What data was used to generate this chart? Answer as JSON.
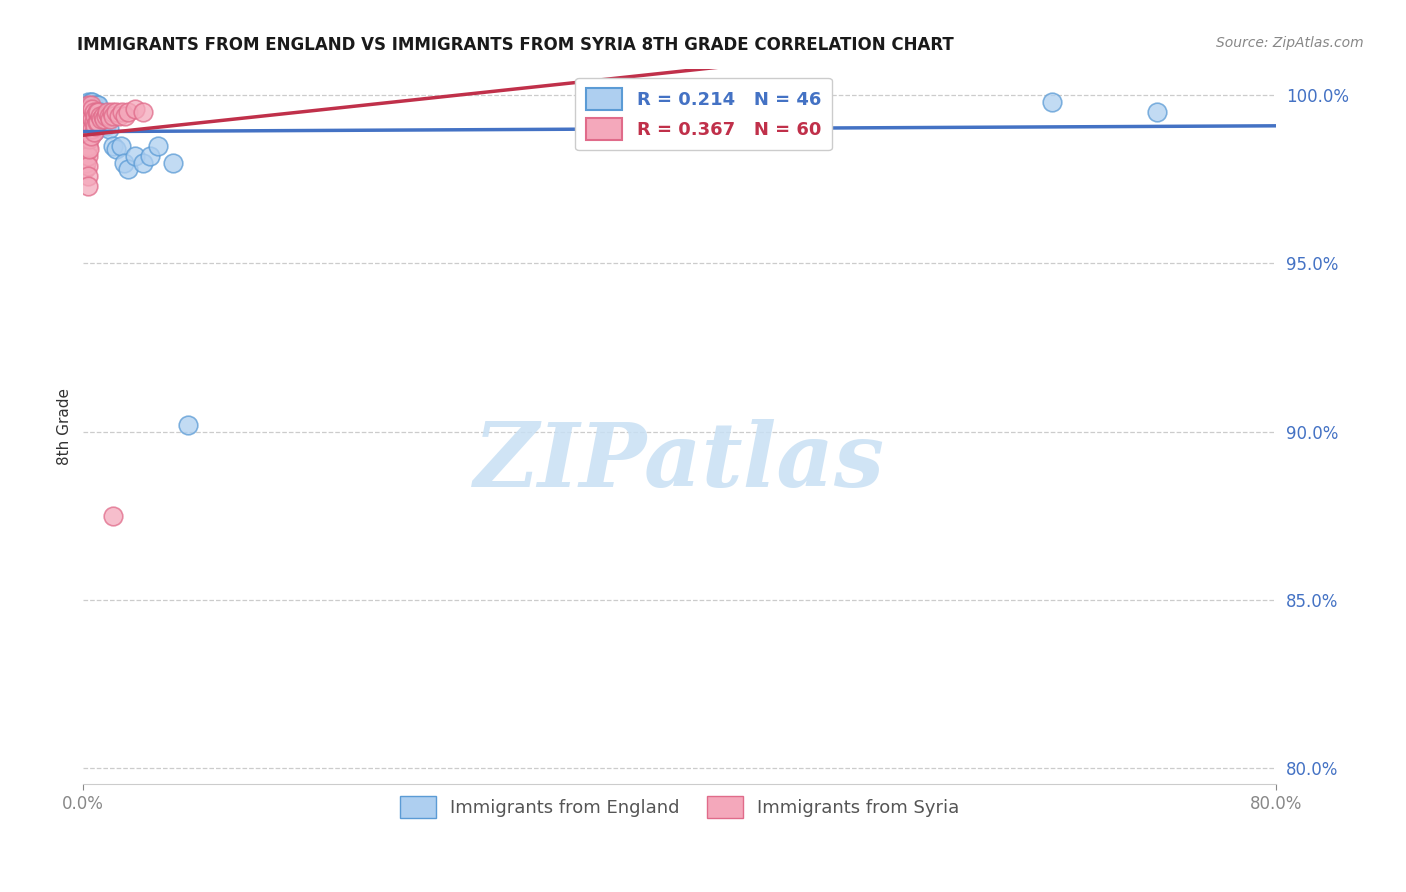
{
  "title": "IMMIGRANTS FROM ENGLAND VS IMMIGRANTS FROM SYRIA 8TH GRADE CORRELATION CHART",
  "source_text": "Source: ZipAtlas.com",
  "ylabel": "8th Grade",
  "xlim": [
    0.0,
    0.8
  ],
  "ylim": [
    0.795,
    1.008
  ],
  "yticks": [
    0.8,
    0.85,
    0.9,
    0.95,
    1.0
  ],
  "ytick_labels": [
    "80.0%",
    "85.0%",
    "90.0%",
    "95.0%",
    "100.0%"
  ],
  "england_R": 0.214,
  "england_N": 46,
  "syria_R": 0.367,
  "syria_N": 60,
  "england_color": "#aecff0",
  "england_edge_color": "#5b9bd5",
  "england_line_color": "#4472c4",
  "syria_color": "#f4a8bb",
  "syria_edge_color": "#e06b8a",
  "syria_line_color": "#c0304a",
  "legend_text_england": "R = 0.214   N = 46",
  "legend_text_syria": "R = 0.367   N = 60",
  "england_x": [
    0.001,
    0.001,
    0.002,
    0.002,
    0.002,
    0.003,
    0.003,
    0.003,
    0.004,
    0.004,
    0.004,
    0.005,
    0.005,
    0.005,
    0.005,
    0.006,
    0.006,
    0.006,
    0.007,
    0.007,
    0.007,
    0.008,
    0.008,
    0.009,
    0.009,
    0.01,
    0.01,
    0.011,
    0.012,
    0.013,
    0.014,
    0.015,
    0.017,
    0.02,
    0.022,
    0.025,
    0.027,
    0.03,
    0.035,
    0.04,
    0.045,
    0.05,
    0.06,
    0.07,
    0.65,
    0.72
  ],
  "england_y": [
    0.997,
    0.994,
    0.996,
    0.993,
    0.99,
    0.998,
    0.995,
    0.991,
    0.997,
    0.994,
    0.99,
    0.998,
    0.995,
    0.992,
    0.989,
    0.998,
    0.994,
    0.99,
    0.997,
    0.993,
    0.989,
    0.996,
    0.992,
    0.997,
    0.993,
    0.997,
    0.993,
    0.995,
    0.994,
    0.993,
    0.992,
    0.991,
    0.99,
    0.985,
    0.984,
    0.985,
    0.98,
    0.978,
    0.982,
    0.98,
    0.982,
    0.985,
    0.98,
    0.902,
    0.998,
    0.995
  ],
  "syria_x": [
    0.001,
    0.001,
    0.001,
    0.001,
    0.001,
    0.001,
    0.002,
    0.002,
    0.002,
    0.002,
    0.002,
    0.002,
    0.003,
    0.003,
    0.003,
    0.003,
    0.003,
    0.003,
    0.003,
    0.003,
    0.003,
    0.004,
    0.004,
    0.004,
    0.004,
    0.004,
    0.005,
    0.005,
    0.005,
    0.005,
    0.006,
    0.006,
    0.006,
    0.007,
    0.007,
    0.007,
    0.008,
    0.008,
    0.009,
    0.009,
    0.01,
    0.01,
    0.011,
    0.012,
    0.013,
    0.014,
    0.015,
    0.016,
    0.017,
    0.018,
    0.019,
    0.02,
    0.022,
    0.024,
    0.026,
    0.028,
    0.03,
    0.035,
    0.04,
    0.02
  ],
  "syria_y": [
    0.993,
    0.99,
    0.987,
    0.984,
    0.981,
    0.978,
    0.995,
    0.992,
    0.989,
    0.986,
    0.983,
    0.98,
    0.997,
    0.994,
    0.991,
    0.988,
    0.985,
    0.982,
    0.979,
    0.976,
    0.973,
    0.996,
    0.993,
    0.99,
    0.987,
    0.984,
    0.997,
    0.994,
    0.991,
    0.988,
    0.996,
    0.993,
    0.99,
    0.995,
    0.992,
    0.989,
    0.994,
    0.991,
    0.995,
    0.992,
    0.995,
    0.992,
    0.994,
    0.993,
    0.994,
    0.993,
    0.994,
    0.995,
    0.994,
    0.993,
    0.995,
    0.994,
    0.995,
    0.994,
    0.995,
    0.994,
    0.995,
    0.996,
    0.995,
    0.875
  ],
  "watermark_text": "ZIPatlas",
  "watermark_color": "#c8e0f4",
  "title_fontsize": 12,
  "tick_fontsize": 12,
  "legend_fontsize": 13,
  "source_fontsize": 10
}
